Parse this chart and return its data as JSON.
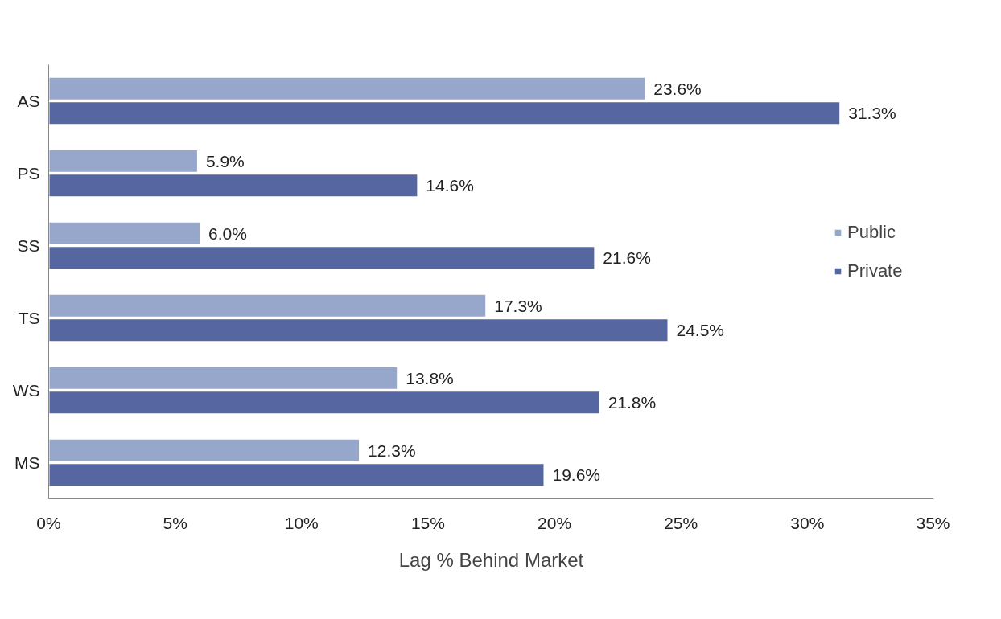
{
  "chart_data": {
    "type": "bar",
    "orientation": "horizontal",
    "xlabel": "Lag % Behind Market",
    "categories": [
      "AS",
      "PS",
      "SS",
      "TS",
      "WS",
      "MS"
    ],
    "series": [
      {
        "name": "Public",
        "color": "#97a6cb",
        "values": [
          23.6,
          5.9,
          6.0,
          17.3,
          13.8,
          12.3
        ],
        "value_labels": [
          "23.6%",
          "5.9%",
          "6.0%",
          "17.3%",
          "13.8%",
          "12.3%"
        ]
      },
      {
        "name": "Private",
        "color": "#5566a0",
        "values": [
          31.3,
          14.6,
          21.6,
          24.5,
          21.8,
          19.6
        ],
        "value_labels": [
          "31.3%",
          "14.6%",
          "21.6%",
          "24.5%",
          "21.8%",
          "19.6%"
        ]
      }
    ],
    "xlim": [
      0,
      35
    ],
    "xticks": [
      {
        "value": 0,
        "label": "0%"
      },
      {
        "value": 5,
        "label": "5%"
      },
      {
        "value": 10,
        "label": "10%"
      },
      {
        "value": 15,
        "label": "15%"
      },
      {
        "value": 20,
        "label": "20%"
      },
      {
        "value": 25,
        "label": "25%"
      },
      {
        "value": 30,
        "label": "30%"
      },
      {
        "value": 35,
        "label": "35%"
      }
    ],
    "grid": false,
    "legend": "right"
  }
}
